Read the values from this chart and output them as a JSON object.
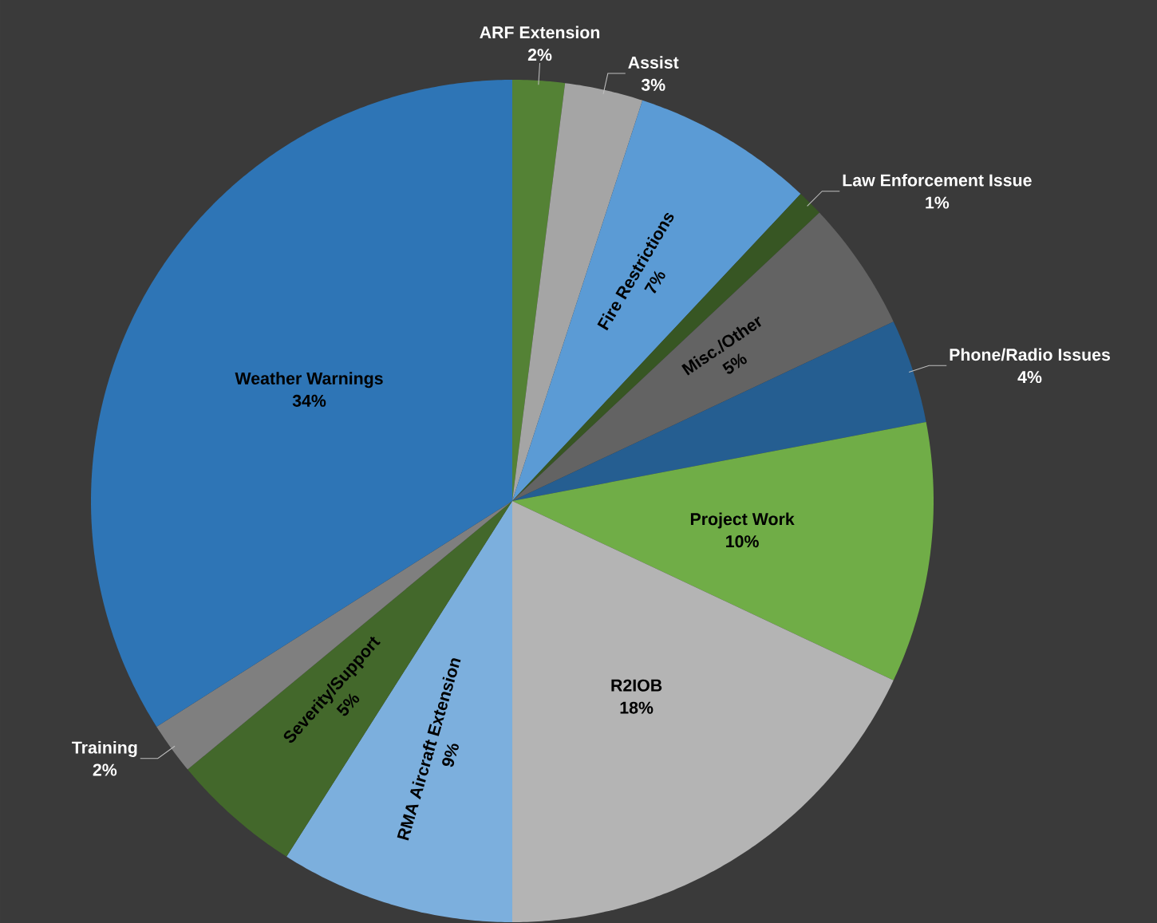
{
  "chart_data": {
    "type": "pie",
    "categories": [
      "ARF Extension",
      "Assist",
      "Fire Restrictions",
      "Law Enforcement Issue",
      "Misc./Other",
      "Phone/Radio Issues",
      "Project Work",
      "R2IOB",
      "RMA Aircraft Extension",
      "Severity/Support",
      "Training",
      "Weather Warnings"
    ],
    "values": [
      2,
      3,
      7,
      1,
      5,
      4,
      10,
      18,
      9,
      5,
      2,
      34
    ],
    "value_labels": [
      "2%",
      "3%",
      "7%",
      "1%",
      "5%",
      "4%",
      "10%",
      "18%",
      "9%",
      "5%",
      "2%",
      "34%"
    ],
    "colors": [
      "#548235",
      "#a5a5a5",
      "#5b9bd5",
      "#375623",
      "#636363",
      "#255e91",
      "#70ad47",
      "#b4b4b4",
      "#7cafdd",
      "#43682b",
      "#7f7f7f",
      "#2e75b6"
    ]
  }
}
